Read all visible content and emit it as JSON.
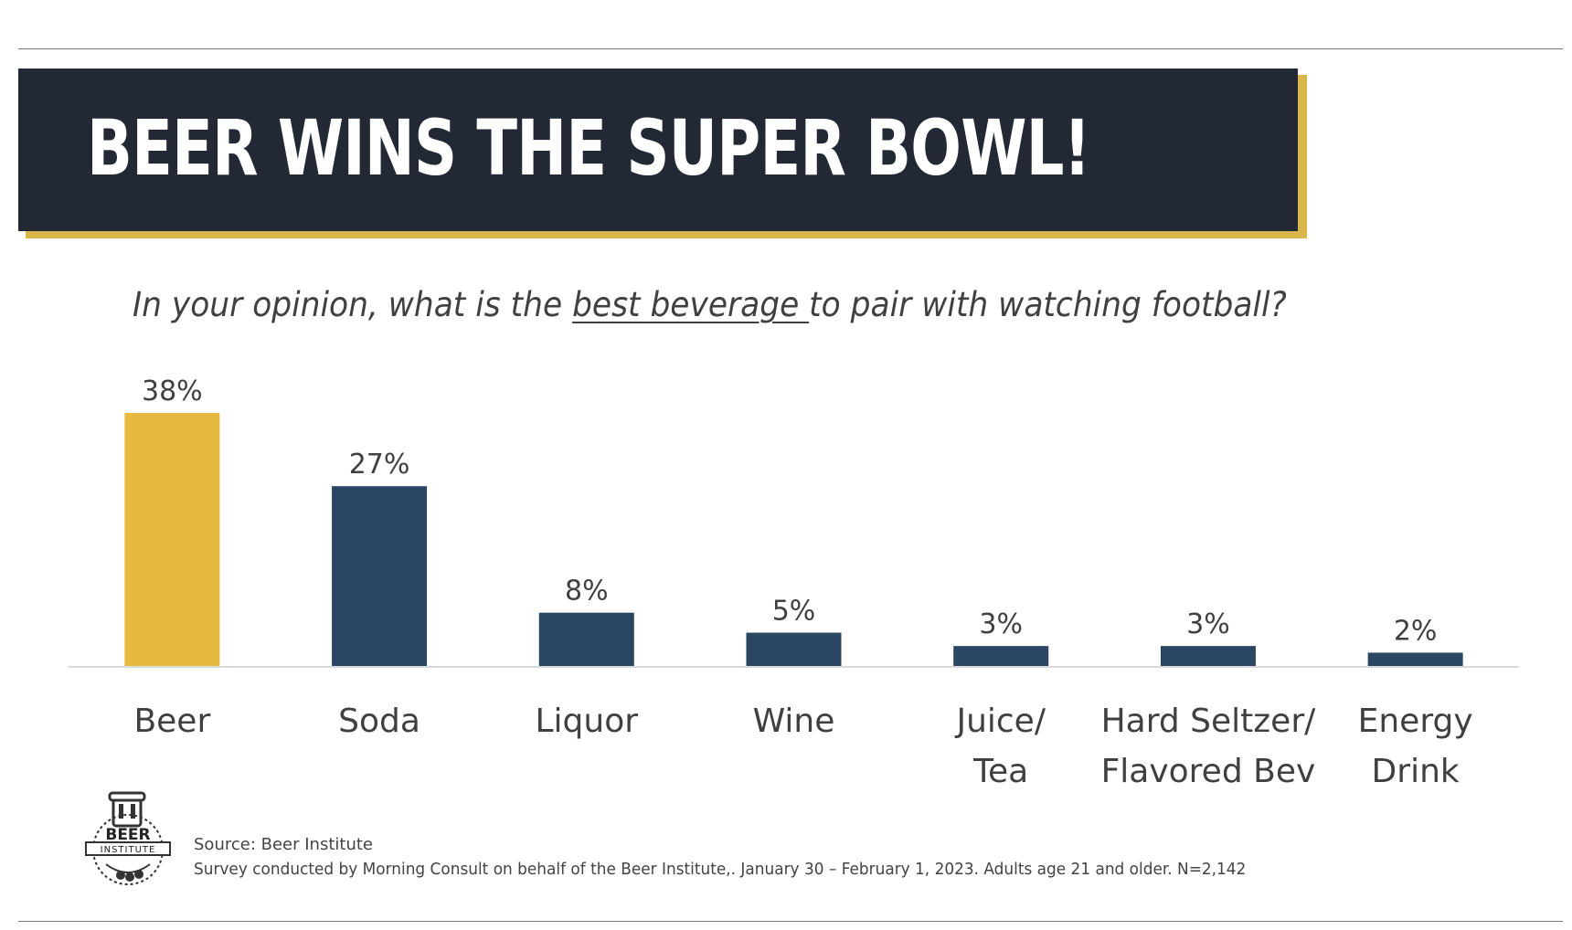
{
  "header": {
    "title": "BEER WINS THE SUPER BOWL!"
  },
  "question": {
    "prefix": "In your opinion, what is the ",
    "emphasis": "best beverage ",
    "suffix": "to pair with watching football?"
  },
  "chart_data": {
    "type": "bar",
    "categories": [
      [
        "Beer"
      ],
      [
        "Soda"
      ],
      [
        "Liquor"
      ],
      [
        "Wine"
      ],
      [
        "Juice/",
        "Tea"
      ],
      [
        "Hard Seltzer/",
        "Flavored Bev"
      ],
      [
        "Energy",
        "Drink"
      ]
    ],
    "values": [
      38,
      27,
      8,
      5,
      3,
      3,
      2
    ],
    "value_labels": [
      "38%",
      "27%",
      "8%",
      "5%",
      "3%",
      "3%",
      "2%"
    ],
    "unit": "%",
    "ylim": [
      0,
      38
    ],
    "grid": false,
    "colors": {
      "highlight": "#e6b940",
      "default": "#2a4663",
      "baseline": "#d9d9d9"
    },
    "highlight_index": 0
  },
  "footer": {
    "logo_text_top": "BEER",
    "logo_text_bottom": "INSTITUTE",
    "source": "Source: Beer Institute",
    "survey_note": "Survey conducted by Morning Consult on behalf of the Beer Institute,. January 30 – February 1, 2023. Adults age 21 and older. N=2,142"
  },
  "colors": {
    "banner": "#222935",
    "banner_shadow": "#d9b54a",
    "title_text": "#ffffff"
  }
}
